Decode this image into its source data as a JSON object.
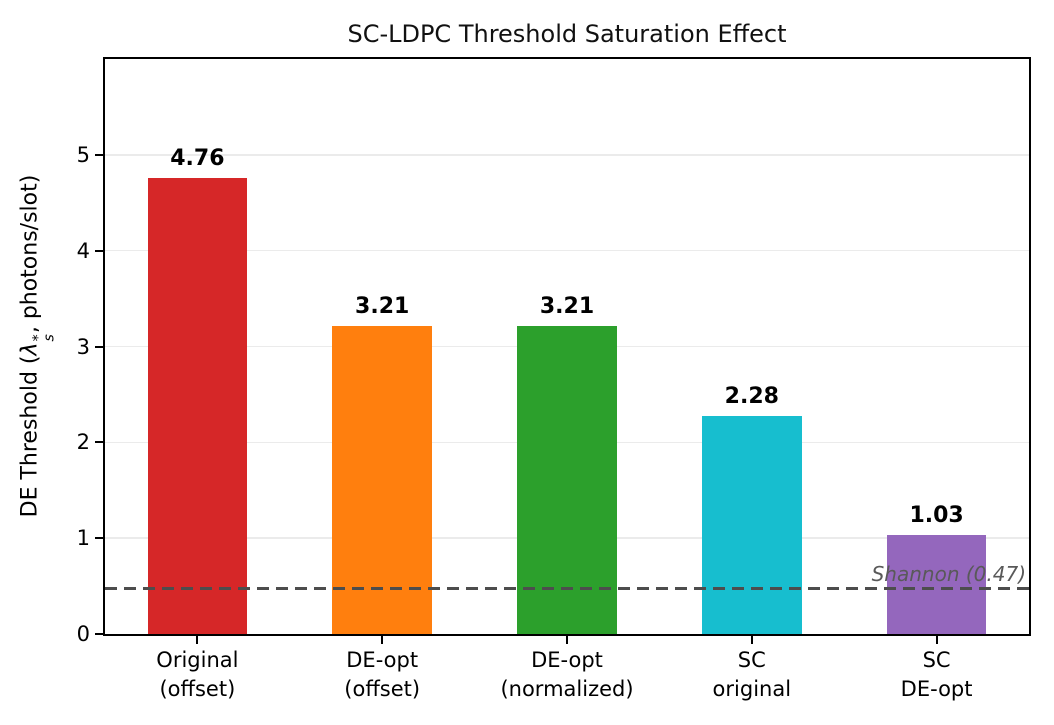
{
  "chart_data": {
    "type": "bar",
    "title": "SC-LDPC Threshold Saturation Effect",
    "categories": [
      "Original\n(offset)",
      "DE-opt\n(offset)",
      "DE-opt\n(normalized)",
      "SC\noriginal",
      "SC\nDE-opt"
    ],
    "values": [
      4.76,
      3.21,
      3.21,
      2.28,
      1.03
    ],
    "value_labels": [
      "4.76",
      "3.21",
      "3.21",
      "2.28",
      "1.03"
    ],
    "bar_colors": [
      "#d62728",
      "#ff7f0e",
      "#2ca02c",
      "#17becf",
      "#9467bd"
    ],
    "xlabel": "",
    "ylabel": "DE Threshold (λs*, photons/slot)",
    "ylabel_parts": {
      "prefix": "DE Threshold (",
      "symbol": "λ",
      "sup": "*",
      "sub": "s",
      "suffix": ", photons/slot)"
    },
    "yticks": [
      0,
      1,
      2,
      3,
      4,
      5
    ],
    "ylim": [
      0,
      6
    ],
    "grid": "horizontal-light",
    "legend": "none",
    "reference_line": {
      "value": 0.47,
      "label": "Shannon (0.47)",
      "style": "dashed",
      "color": "#4d4d4d"
    },
    "colors": {
      "background": "#ffffff",
      "spine": "#000000",
      "gridline": "#ebebeb",
      "ref_line": "#4d4d4d",
      "ref_label": "#595959"
    }
  }
}
